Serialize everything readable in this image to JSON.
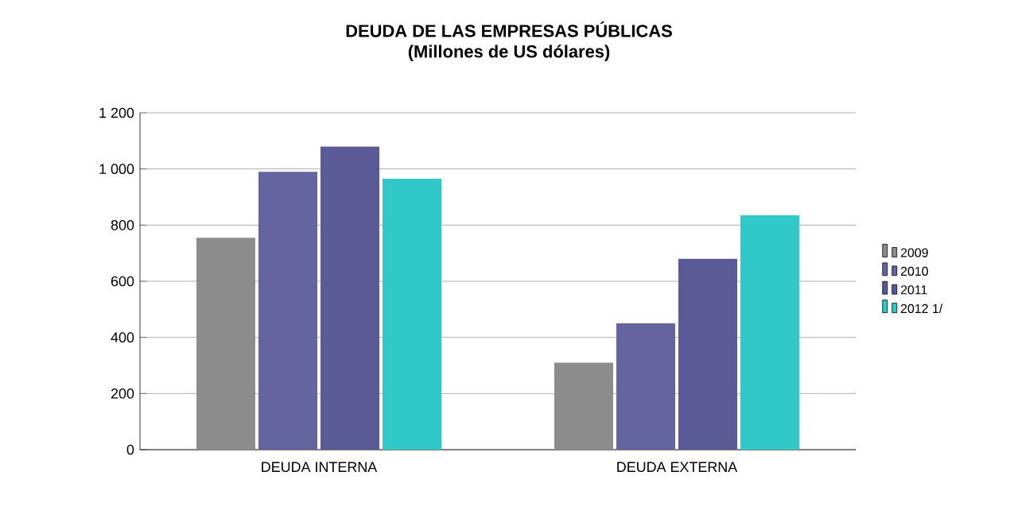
{
  "chart_data": {
    "type": "bar",
    "title": "DEUDA DE LAS EMPRESAS PÚBLICAS",
    "subtitle": "(Millones de US dólares)",
    "categories": [
      "DEUDA INTERNA",
      "DEUDA EXTERNA"
    ],
    "series": [
      {
        "name": "2009",
        "color": "#8c8c8c",
        "values": [
          755,
          310
        ]
      },
      {
        "name": "2010",
        "color": "#6464a0",
        "values": [
          990,
          450
        ]
      },
      {
        "name": "2011",
        "color": "#5a5a96",
        "values": [
          1080,
          680
        ]
      },
      {
        "name": "2012 1/",
        "color": "#30c8c8",
        "values": [
          965,
          835
        ]
      }
    ],
    "ylim": [
      0,
      1200
    ],
    "yticks": [
      0,
      200,
      400,
      600,
      800,
      {
        "value": 1000,
        "label": "1 000"
      },
      {
        "value": 1200,
        "label": "1 200"
      }
    ],
    "grid": "y",
    "legend": "right"
  }
}
